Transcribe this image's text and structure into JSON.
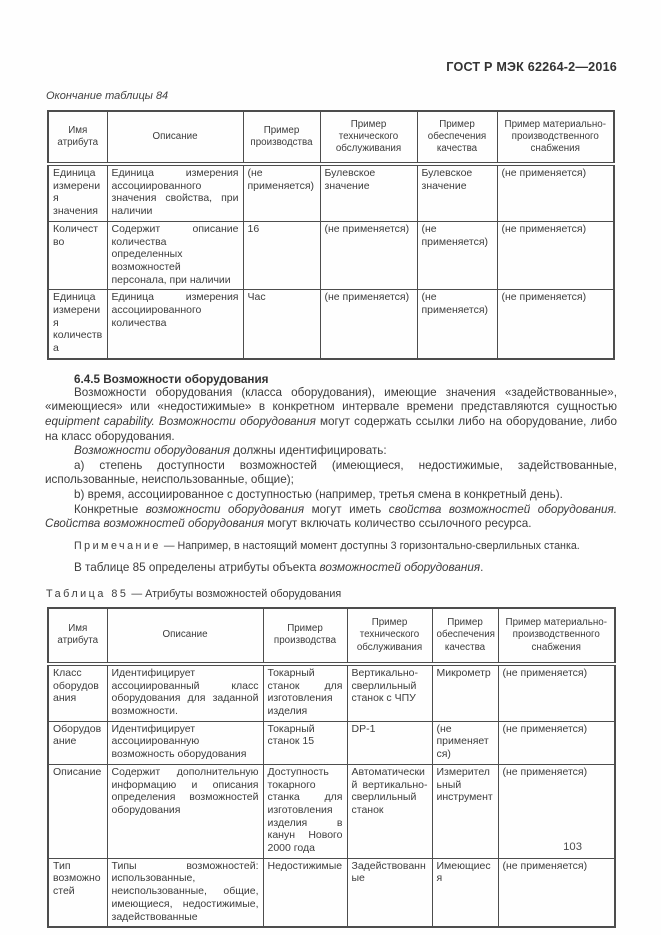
{
  "doc": {
    "running_head": "ГОСТ Р МЭК 62264-2—2016",
    "page_number": "103"
  },
  "table84": {
    "caption": "Окончание таблицы 84",
    "headers": [
      "Имя атрибута",
      "Описание",
      "Пример производства",
      "Пример технического обслуживания",
      "Пример обеспечения качества",
      "Пример материально-производственного снабжения"
    ],
    "rows": [
      [
        "Единица измерения значения",
        "Единица измерения ассоциированного значения свойства, при наличии",
        "(не применяется)",
        "Булевское значение",
        "Булевское значение",
        "(не применяется)"
      ],
      [
        "Количество",
        "Содержит описание количества определенных возможностей персонала, при наличии",
        "16",
        "(не применяется)",
        "(не применяется)",
        "(не применяется)"
      ],
      [
        "Единица измерения количества",
        "Единица измерения ассоциированного количества",
        "Час",
        "(не применяется)",
        "(не применяется)",
        "(не применяется)"
      ]
    ]
  },
  "section": {
    "heading": "6.4.5 Возможности оборудования",
    "p1": [
      {
        "t": "Возможности оборудования (класса оборудования), имеющие значения «задействованные», «имеющиеся» или «недостижимые» в конкретном интервале времени представляются сущностью "
      },
      {
        "t": "equipment capability. Возможности оборудования"
      },
      {
        "t": " могут содержать ссылки либо на оборудование, либо на класс оборудования."
      }
    ],
    "p2": [
      {
        "t": "Возможности оборудования"
      },
      {
        "t": " должны идентифицировать:"
      }
    ],
    "item_a": "a) степень доступности возможностей (имеющиеся, недостижимые, задействованные, использованные, неиспользованные, общие);",
    "item_b": "b) время, ассоциированное с доступностью (например, третья смена в конкретный день).",
    "p3": [
      {
        "t": "Конкретные "
      },
      {
        "t": "возможности оборудования"
      },
      {
        "t": " могут иметь "
      },
      {
        "t": "свойства возможностей оборудования. Свойства возможностей оборудования"
      },
      {
        "t": " могут включать количество ссылочного ресурса."
      }
    ],
    "note": {
      "label": "Примечание",
      "text": " — Например, в настоящий момент доступны 3 горизонтально-сверлильных станка."
    },
    "p4": [
      {
        "t": "В таблице 85 определены атрибуты объекта "
      },
      {
        "t": "возможностей оборудования"
      },
      {
        "t": "."
      }
    ]
  },
  "table85": {
    "caption_label": "Таблица 85",
    "caption_text": " — Атрибуты возможностей оборудования",
    "headers": [
      "Имя атрибута",
      "Описание",
      "Пример производства",
      "Пример технического обслуживания",
      "Пример обеспечения качества",
      "Пример материально-производственного снабжения"
    ],
    "rows": [
      [
        "Класс оборудования",
        "Идентифицирует ассоциированный класс оборудования для заданной возможности.",
        "Токарный станок для изготовления изделия",
        "Вертикально-сверлильный станок с ЧПУ",
        "Микрометр",
        "(не применяется)"
      ],
      [
        "Оборудование",
        "Идентифицирует ассоциированную возможность оборудования",
        "Токарный станок 15",
        "DP-1",
        "(не применяется)",
        "(не применяется)"
      ],
      [
        "Описание",
        "Содержит дополнительную информацию и описания определения возможностей оборудования",
        "Доступность токарного станка для изготовления изделия в канун Нового 2000 года",
        "Автоматический вертикально-сверлильный станок",
        "Измерительный инструмент",
        "(не применяется)"
      ],
      [
        "Тип возможностей",
        "Типы возможностей: использованные, неиспользованные, общие, имеющиеся, недостижимые, задействованные",
        "Недостижимые",
        "Задействованные",
        "Имеющиеся",
        "(не применяется)"
      ]
    ]
  }
}
